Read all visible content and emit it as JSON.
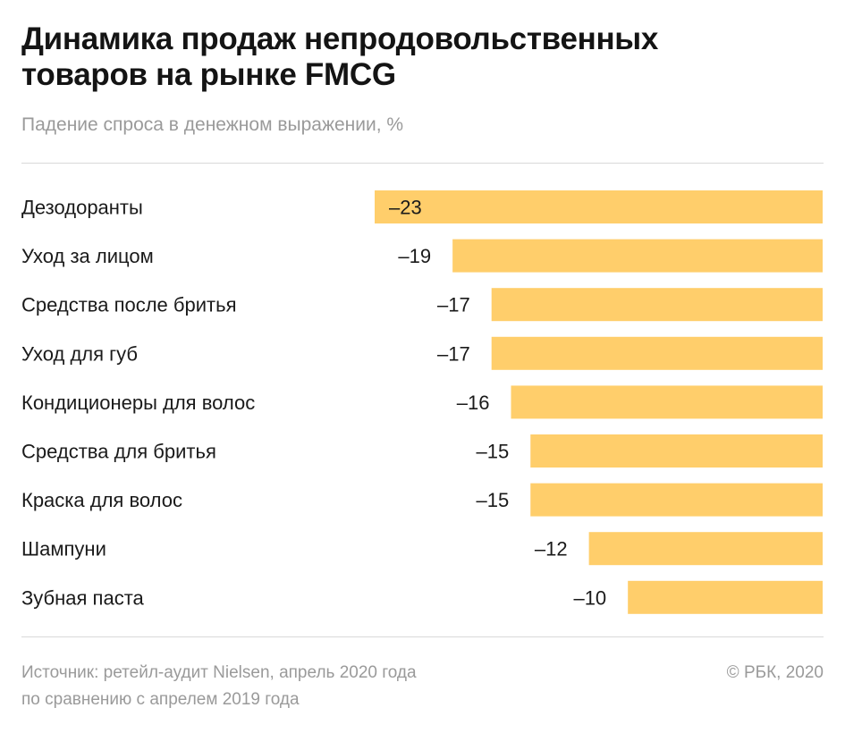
{
  "title_lines": [
    "Динамика продаж непродовольственных",
    "товаров на рынке FMCG"
  ],
  "subtitle": "Падение спроса в денежном выражении, %",
  "source_lines": [
    "Источник: ретейл-аудит Nielsen, апрель 2020 года",
    "по сравнению с апрелем 2019 года"
  ],
  "copyright": "© РБК, 2020",
  "colors": {
    "bar": "#FFCE6B",
    "text": "#1a1a1a",
    "muted": "#9a9a9a",
    "rule": "#d9d9d9"
  },
  "chart_data": {
    "type": "bar",
    "orientation": "horizontal",
    "title": "Динамика продаж непродовольственных товаров на рынке FMCG",
    "subtitle": "Падение спроса в денежном выражении, %",
    "categories": [
      "Дезодоранты",
      "Уход за лицом",
      "Средства после бритья",
      "Уход для губ",
      "Кондиционеры для волос",
      "Средства для бритья",
      "Краска для волос",
      "Шампуни",
      "Зубная паста"
    ],
    "values": [
      -23,
      -19,
      -17,
      -17,
      -16,
      -15,
      -15,
      -12,
      -10
    ],
    "value_labels": [
      "–23",
      "–19",
      "–17",
      "–17",
      "–16",
      "–15",
      "–15",
      "–12",
      "–10"
    ],
    "xlim": [
      -23,
      0
    ],
    "grid": false,
    "legend": "none"
  }
}
